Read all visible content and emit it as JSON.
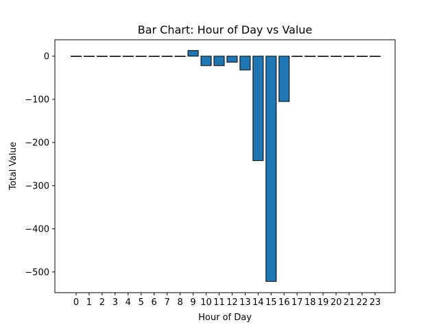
{
  "chart_data": {
    "type": "bar",
    "title": "Bar Chart: Hour of Day vs Value",
    "xlabel": "Hour of Day",
    "ylabel": "Total Value",
    "categories": [
      "0",
      "1",
      "2",
      "3",
      "4",
      "5",
      "6",
      "7",
      "8",
      "9",
      "10",
      "11",
      "12",
      "13",
      "14",
      "15",
      "16",
      "17",
      "18",
      "19",
      "20",
      "21",
      "22",
      "23"
    ],
    "values": [
      0,
      0,
      0,
      0,
      0,
      0,
      0,
      0,
      0,
      13,
      -22,
      -22,
      -14,
      -32,
      -242,
      -522,
      -105,
      0,
      0,
      0,
      0,
      0,
      0,
      0
    ],
    "ylim": [
      -548,
      38
    ],
    "yticks": [
      0,
      -100,
      -200,
      -300,
      -400,
      -500
    ],
    "ytick_labels": [
      "0",
      "−100",
      "−200",
      "−300",
      "−400",
      "−500"
    ],
    "bar_color": "#1f77b4",
    "edge_color": "#000000",
    "grid": false,
    "legend": false
  }
}
